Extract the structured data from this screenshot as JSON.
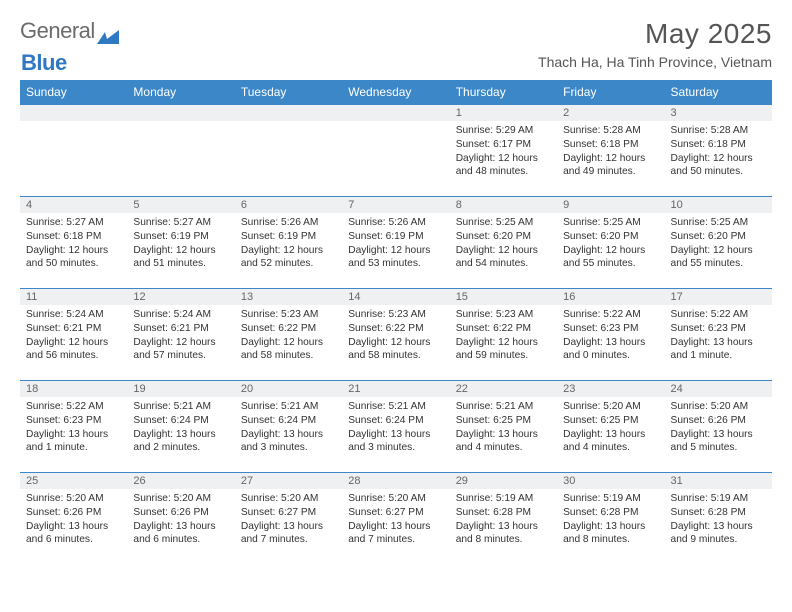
{
  "brand": {
    "part1": "General",
    "part2": "Blue"
  },
  "title": "May 2025",
  "location": "Thach Ha, Ha Tinh Province, Vietnam",
  "colors": {
    "header_bg": "#3b87c8",
    "daynum_bg": "#eef0f1",
    "border": "#3b87c8",
    "text": "#333333",
    "title_text": "#555555"
  },
  "weekdays": [
    "Sunday",
    "Monday",
    "Tuesday",
    "Wednesday",
    "Thursday",
    "Friday",
    "Saturday"
  ],
  "grid": [
    [
      null,
      null,
      null,
      null,
      {
        "n": "1",
        "sr": "5:29 AM",
        "ss": "6:17 PM",
        "dl": "12 hours and 48 minutes."
      },
      {
        "n": "2",
        "sr": "5:28 AM",
        "ss": "6:18 PM",
        "dl": "12 hours and 49 minutes."
      },
      {
        "n": "3",
        "sr": "5:28 AM",
        "ss": "6:18 PM",
        "dl": "12 hours and 50 minutes."
      }
    ],
    [
      {
        "n": "4",
        "sr": "5:27 AM",
        "ss": "6:18 PM",
        "dl": "12 hours and 50 minutes."
      },
      {
        "n": "5",
        "sr": "5:27 AM",
        "ss": "6:19 PM",
        "dl": "12 hours and 51 minutes."
      },
      {
        "n": "6",
        "sr": "5:26 AM",
        "ss": "6:19 PM",
        "dl": "12 hours and 52 minutes."
      },
      {
        "n": "7",
        "sr": "5:26 AM",
        "ss": "6:19 PM",
        "dl": "12 hours and 53 minutes."
      },
      {
        "n": "8",
        "sr": "5:25 AM",
        "ss": "6:20 PM",
        "dl": "12 hours and 54 minutes."
      },
      {
        "n": "9",
        "sr": "5:25 AM",
        "ss": "6:20 PM",
        "dl": "12 hours and 55 minutes."
      },
      {
        "n": "10",
        "sr": "5:25 AM",
        "ss": "6:20 PM",
        "dl": "12 hours and 55 minutes."
      }
    ],
    [
      {
        "n": "11",
        "sr": "5:24 AM",
        "ss": "6:21 PM",
        "dl": "12 hours and 56 minutes."
      },
      {
        "n": "12",
        "sr": "5:24 AM",
        "ss": "6:21 PM",
        "dl": "12 hours and 57 minutes."
      },
      {
        "n": "13",
        "sr": "5:23 AM",
        "ss": "6:22 PM",
        "dl": "12 hours and 58 minutes."
      },
      {
        "n": "14",
        "sr": "5:23 AM",
        "ss": "6:22 PM",
        "dl": "12 hours and 58 minutes."
      },
      {
        "n": "15",
        "sr": "5:23 AM",
        "ss": "6:22 PM",
        "dl": "12 hours and 59 minutes."
      },
      {
        "n": "16",
        "sr": "5:22 AM",
        "ss": "6:23 PM",
        "dl": "13 hours and 0 minutes."
      },
      {
        "n": "17",
        "sr": "5:22 AM",
        "ss": "6:23 PM",
        "dl": "13 hours and 1 minute."
      }
    ],
    [
      {
        "n": "18",
        "sr": "5:22 AM",
        "ss": "6:23 PM",
        "dl": "13 hours and 1 minute."
      },
      {
        "n": "19",
        "sr": "5:21 AM",
        "ss": "6:24 PM",
        "dl": "13 hours and 2 minutes."
      },
      {
        "n": "20",
        "sr": "5:21 AM",
        "ss": "6:24 PM",
        "dl": "13 hours and 3 minutes."
      },
      {
        "n": "21",
        "sr": "5:21 AM",
        "ss": "6:24 PM",
        "dl": "13 hours and 3 minutes."
      },
      {
        "n": "22",
        "sr": "5:21 AM",
        "ss": "6:25 PM",
        "dl": "13 hours and 4 minutes."
      },
      {
        "n": "23",
        "sr": "5:20 AM",
        "ss": "6:25 PM",
        "dl": "13 hours and 4 minutes."
      },
      {
        "n": "24",
        "sr": "5:20 AM",
        "ss": "6:26 PM",
        "dl": "13 hours and 5 minutes."
      }
    ],
    [
      {
        "n": "25",
        "sr": "5:20 AM",
        "ss": "6:26 PM",
        "dl": "13 hours and 6 minutes."
      },
      {
        "n": "26",
        "sr": "5:20 AM",
        "ss": "6:26 PM",
        "dl": "13 hours and 6 minutes."
      },
      {
        "n": "27",
        "sr": "5:20 AM",
        "ss": "6:27 PM",
        "dl": "13 hours and 7 minutes."
      },
      {
        "n": "28",
        "sr": "5:20 AM",
        "ss": "6:27 PM",
        "dl": "13 hours and 7 minutes."
      },
      {
        "n": "29",
        "sr": "5:19 AM",
        "ss": "6:28 PM",
        "dl": "13 hours and 8 minutes."
      },
      {
        "n": "30",
        "sr": "5:19 AM",
        "ss": "6:28 PM",
        "dl": "13 hours and 8 minutes."
      },
      {
        "n": "31",
        "sr": "5:19 AM",
        "ss": "6:28 PM",
        "dl": "13 hours and 9 minutes."
      }
    ]
  ],
  "labels": {
    "sunrise": "Sunrise:",
    "sunset": "Sunset:",
    "daylight": "Daylight:"
  }
}
